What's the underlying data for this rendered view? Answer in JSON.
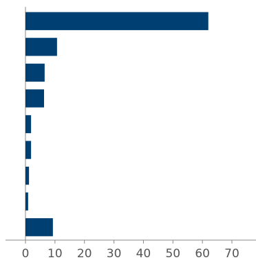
{
  "chart_data": {
    "type": "bar",
    "orientation": "horizontal",
    "categories": [
      null,
      null,
      null,
      null,
      null,
      null,
      null,
      null,
      null
    ],
    "values": [
      62,
      10.7,
      6.5,
      6.3,
      1.9,
      1.9,
      1.2,
      0.9,
      9.3
    ],
    "color": "#003f72",
    "xlim": [
      0,
      70
    ],
    "xticks": [
      0,
      10,
      20,
      30,
      40,
      50,
      60,
      70
    ],
    "grid": false
  }
}
